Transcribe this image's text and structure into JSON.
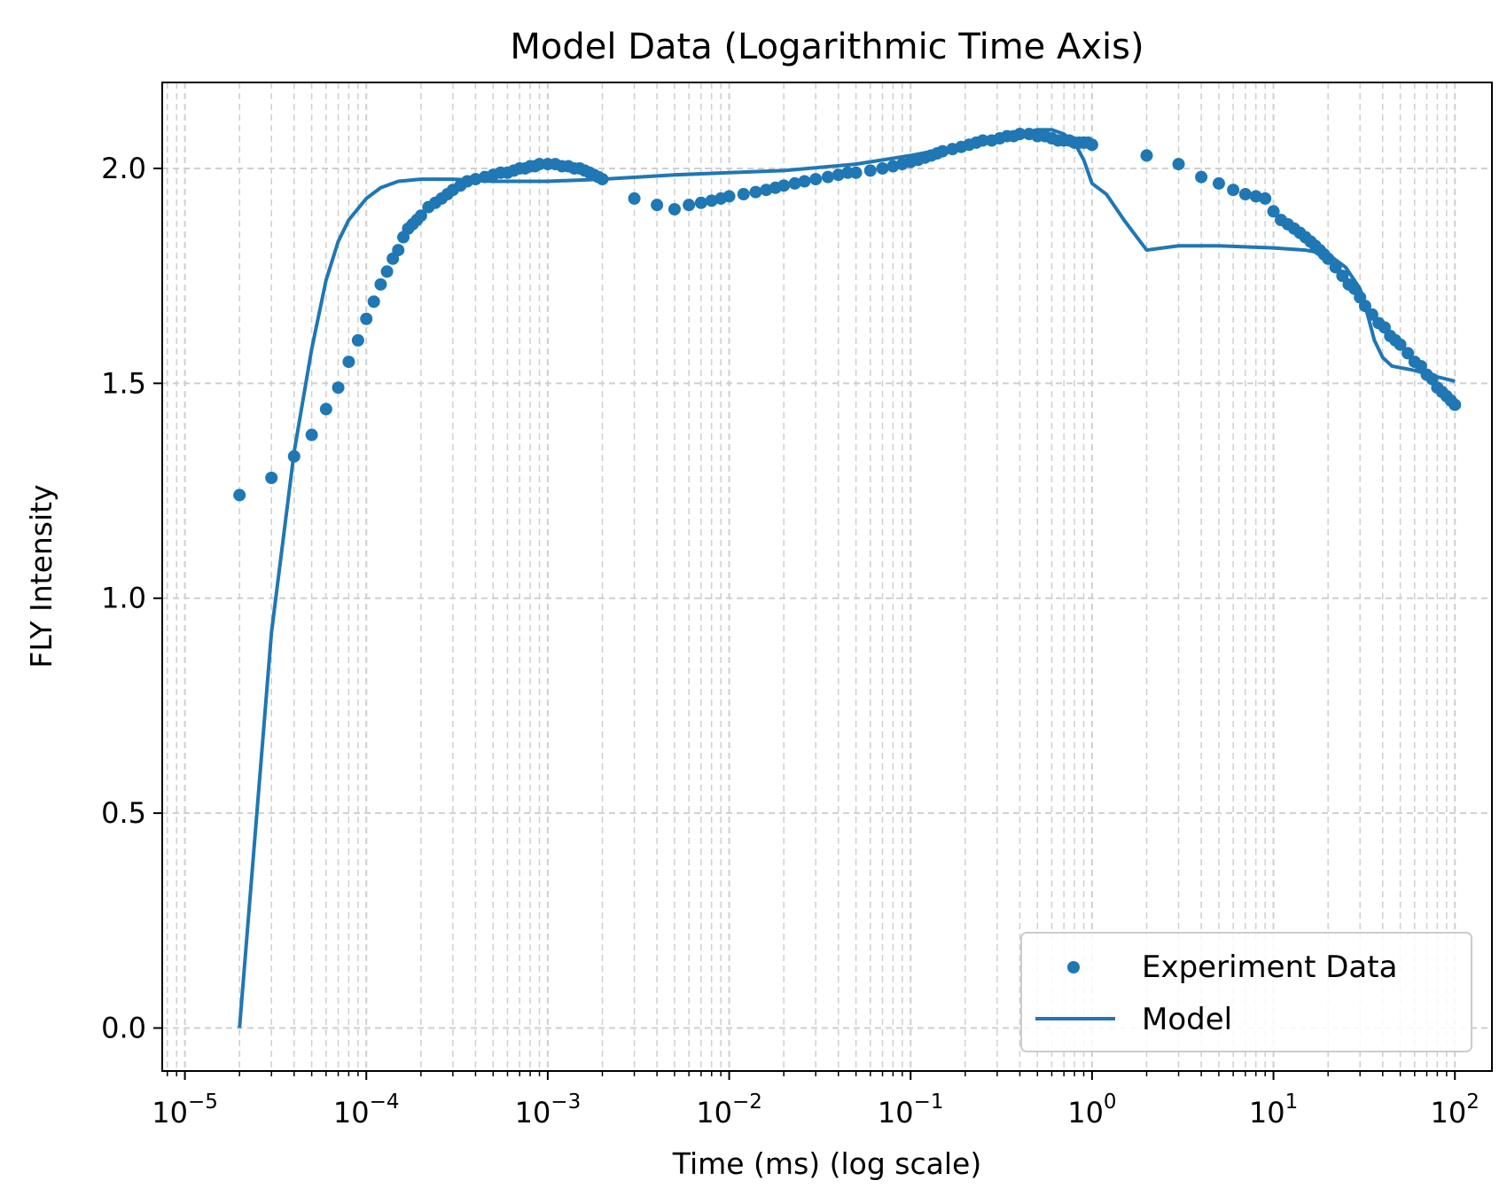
{
  "chart_data": {
    "type": "scatter",
    "title": "Model Data (Logarithmic Time Axis)",
    "xlabel": "Time (ms) (log scale)",
    "ylabel": "FLY Intensity",
    "xscale": "log",
    "xlim": [
      7.5e-06,
      160
    ],
    "ylim": [
      -0.1,
      2.2
    ],
    "grid": true,
    "grid_style": "dashed",
    "legend_position": "lower-right",
    "colors": {
      "series": "#1f77b4",
      "grid": "#cfcfcf"
    },
    "x_ticks": [
      {
        "value": 1e-05,
        "base": "10",
        "exp": "−5"
      },
      {
        "value": 0.0001,
        "base": "10",
        "exp": "−4"
      },
      {
        "value": 0.001,
        "base": "10",
        "exp": "−3"
      },
      {
        "value": 0.01,
        "base": "10",
        "exp": "−2"
      },
      {
        "value": 0.1,
        "base": "10",
        "exp": "−1"
      },
      {
        "value": 1,
        "base": "10",
        "exp": "0"
      },
      {
        "value": 10,
        "base": "10",
        "exp": "1"
      },
      {
        "value": 100,
        "base": "10",
        "exp": "2"
      }
    ],
    "y_ticks": [
      {
        "value": 0.0,
        "label": "0.0"
      },
      {
        "value": 0.5,
        "label": "0.5"
      },
      {
        "value": 1.0,
        "label": "1.0"
      },
      {
        "value": 1.5,
        "label": "1.5"
      },
      {
        "value": 2.0,
        "label": "2.0"
      }
    ],
    "series": [
      {
        "name": "Experiment Data",
        "type": "scatter",
        "points": [
          [
            2e-05,
            1.24
          ],
          [
            3e-05,
            1.28
          ],
          [
            4e-05,
            1.33
          ],
          [
            5e-05,
            1.38
          ],
          [
            6e-05,
            1.44
          ],
          [
            7e-05,
            1.49
          ],
          [
            8e-05,
            1.55
          ],
          [
            9e-05,
            1.6
          ],
          [
            0.0001,
            1.65
          ],
          [
            0.00011,
            1.69
          ],
          [
            0.00012,
            1.73
          ],
          [
            0.00013,
            1.76
          ],
          [
            0.00014,
            1.79
          ],
          [
            0.00015,
            1.81
          ],
          [
            0.00016,
            1.84
          ],
          [
            0.00017,
            1.86
          ],
          [
            0.00018,
            1.87
          ],
          [
            0.00019,
            1.88
          ],
          [
            0.0002,
            1.89
          ],
          [
            0.00022,
            1.91
          ],
          [
            0.00024,
            1.92
          ],
          [
            0.00026,
            1.93
          ],
          [
            0.00028,
            1.94
          ],
          [
            0.0003,
            1.95
          ],
          [
            0.00033,
            1.96
          ],
          [
            0.00036,
            1.97
          ],
          [
            0.0004,
            1.975
          ],
          [
            0.00045,
            1.98
          ],
          [
            0.0005,
            1.985
          ],
          [
            0.00055,
            1.99
          ],
          [
            0.0006,
            1.99
          ],
          [
            0.00065,
            1.995
          ],
          [
            0.0007,
            2.0
          ],
          [
            0.00075,
            2.0
          ],
          [
            0.0008,
            2.005
          ],
          [
            0.00085,
            2.005
          ],
          [
            0.0009,
            2.01
          ],
          [
            0.001,
            2.01
          ],
          [
            0.0011,
            2.01
          ],
          [
            0.0012,
            2.005
          ],
          [
            0.0013,
            2.005
          ],
          [
            0.0014,
            2.0
          ],
          [
            0.0015,
            2.0
          ],
          [
            0.0016,
            1.995
          ],
          [
            0.0017,
            1.99
          ],
          [
            0.0018,
            1.985
          ],
          [
            0.0019,
            1.98
          ],
          [
            0.002,
            1.975
          ],
          [
            0.003,
            1.93
          ],
          [
            0.004,
            1.915
          ],
          [
            0.005,
            1.905
          ],
          [
            0.006,
            1.915
          ],
          [
            0.007,
            1.92
          ],
          [
            0.008,
            1.925
          ],
          [
            0.009,
            1.93
          ],
          [
            0.01,
            1.935
          ],
          [
            0.012,
            1.94
          ],
          [
            0.014,
            1.945
          ],
          [
            0.016,
            1.95
          ],
          [
            0.018,
            1.955
          ],
          [
            0.02,
            1.96
          ],
          [
            0.023,
            1.965
          ],
          [
            0.026,
            1.97
          ],
          [
            0.03,
            1.975
          ],
          [
            0.035,
            1.98
          ],
          [
            0.04,
            1.985
          ],
          [
            0.045,
            1.99
          ],
          [
            0.05,
            1.99
          ],
          [
            0.06,
            1.995
          ],
          [
            0.07,
            2.0
          ],
          [
            0.08,
            2.005
          ],
          [
            0.09,
            2.01
          ],
          [
            0.1,
            2.015
          ],
          [
            0.11,
            2.02
          ],
          [
            0.12,
            2.025
          ],
          [
            0.13,
            2.03
          ],
          [
            0.14,
            2.035
          ],
          [
            0.15,
            2.04
          ],
          [
            0.17,
            2.045
          ],
          [
            0.19,
            2.05
          ],
          [
            0.21,
            2.055
          ],
          [
            0.23,
            2.06
          ],
          [
            0.25,
            2.065
          ],
          [
            0.28,
            2.065
          ],
          [
            0.31,
            2.07
          ],
          [
            0.34,
            2.075
          ],
          [
            0.37,
            2.075
          ],
          [
            0.4,
            2.08
          ],
          [
            0.45,
            2.08
          ],
          [
            0.5,
            2.075
          ],
          [
            0.55,
            2.075
          ],
          [
            0.6,
            2.07
          ],
          [
            0.65,
            2.065
          ],
          [
            0.7,
            2.065
          ],
          [
            0.75,
            2.065
          ],
          [
            0.8,
            2.06
          ],
          [
            0.85,
            2.06
          ],
          [
            0.9,
            2.06
          ],
          [
            0.95,
            2.06
          ],
          [
            1.0,
            2.055
          ],
          [
            2,
            2.03
          ],
          [
            3,
            2.01
          ],
          [
            4,
            1.98
          ],
          [
            5,
            1.965
          ],
          [
            6,
            1.95
          ],
          [
            7,
            1.94
          ],
          [
            8,
            1.935
          ],
          [
            9,
            1.93
          ],
          [
            10,
            1.9
          ],
          [
            11,
            1.88
          ],
          [
            12,
            1.87
          ],
          [
            13,
            1.86
          ],
          [
            14,
            1.85
          ],
          [
            15,
            1.84
          ],
          [
            16,
            1.83
          ],
          [
            17,
            1.82
          ],
          [
            18,
            1.81
          ],
          [
            19,
            1.8
          ],
          [
            20,
            1.79
          ],
          [
            22,
            1.77
          ],
          [
            24,
            1.75
          ],
          [
            26,
            1.73
          ],
          [
            28,
            1.72
          ],
          [
            30,
            1.7
          ],
          [
            32,
            1.68
          ],
          [
            35,
            1.66
          ],
          [
            38,
            1.64
          ],
          [
            41,
            1.63
          ],
          [
            44,
            1.61
          ],
          [
            47,
            1.6
          ],
          [
            50,
            1.59
          ],
          [
            55,
            1.57
          ],
          [
            60,
            1.55
          ],
          [
            65,
            1.54
          ],
          [
            70,
            1.52
          ],
          [
            75,
            1.51
          ],
          [
            80,
            1.49
          ],
          [
            85,
            1.48
          ],
          [
            90,
            1.47
          ],
          [
            95,
            1.46
          ],
          [
            100,
            1.45
          ]
        ]
      },
      {
        "name": "Model",
        "type": "line",
        "points": [
          [
            2e-05,
            0.0
          ],
          [
            3e-05,
            0.92
          ],
          [
            4e-05,
            1.34
          ],
          [
            5e-05,
            1.58
          ],
          [
            6e-05,
            1.74
          ],
          [
            7e-05,
            1.83
          ],
          [
            8e-05,
            1.88
          ],
          [
            0.0001,
            1.93
          ],
          [
            0.00012,
            1.955
          ],
          [
            0.00015,
            1.97
          ],
          [
            0.0002,
            1.975
          ],
          [
            0.0003,
            1.975
          ],
          [
            0.0005,
            1.97
          ],
          [
            0.001,
            1.97
          ],
          [
            0.002,
            1.975
          ],
          [
            0.005,
            1.985
          ],
          [
            0.01,
            1.99
          ],
          [
            0.02,
            1.995
          ],
          [
            0.05,
            2.01
          ],
          [
            0.1,
            2.03
          ],
          [
            0.2,
            2.055
          ],
          [
            0.3,
            2.07
          ],
          [
            0.4,
            2.08
          ],
          [
            0.5,
            2.09
          ],
          [
            0.6,
            2.09
          ],
          [
            0.7,
            2.08
          ],
          [
            0.8,
            2.06
          ],
          [
            0.9,
            2.02
          ],
          [
            1.0,
            1.965
          ],
          [
            1.2,
            1.94
          ],
          [
            1.5,
            1.88
          ],
          [
            2,
            1.81
          ],
          [
            3,
            1.82
          ],
          [
            5,
            1.82
          ],
          [
            10,
            1.815
          ],
          [
            15,
            1.81
          ],
          [
            20,
            1.8
          ],
          [
            25,
            1.77
          ],
          [
            30,
            1.72
          ],
          [
            33,
            1.66
          ],
          [
            36,
            1.6
          ],
          [
            40,
            1.56
          ],
          [
            45,
            1.54
          ],
          [
            60,
            1.53
          ],
          [
            80,
            1.515
          ],
          [
            100,
            1.505
          ]
        ]
      }
    ]
  }
}
